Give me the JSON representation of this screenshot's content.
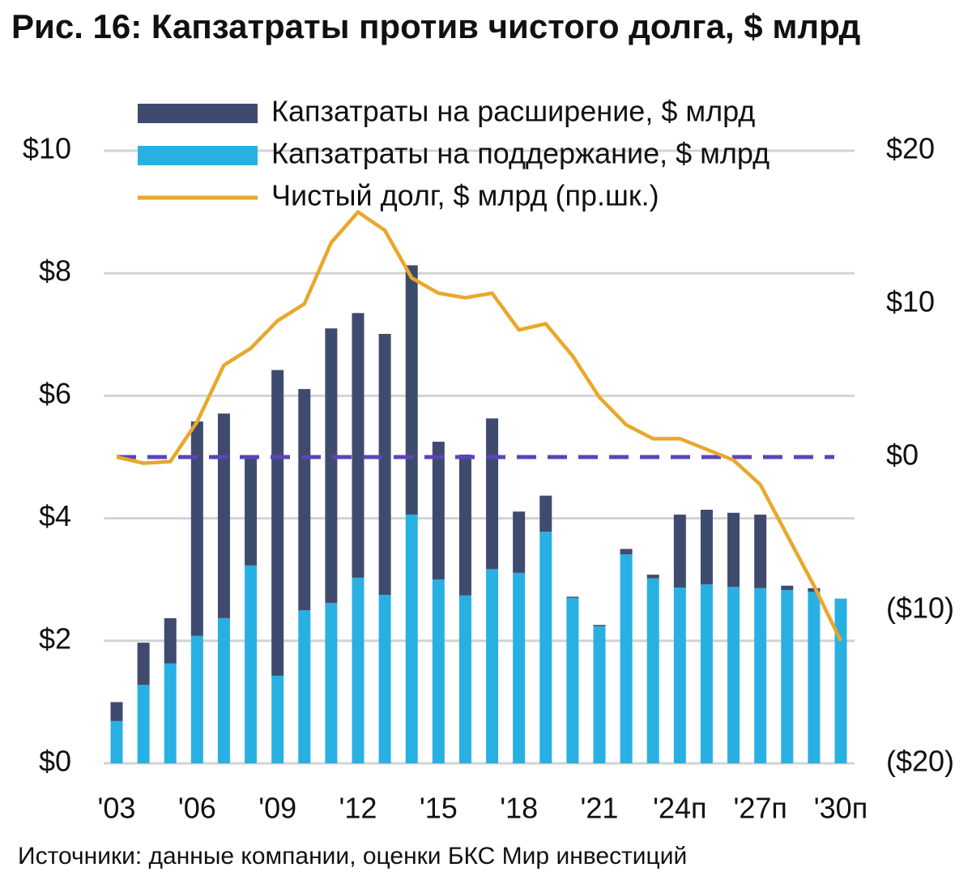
{
  "chart_data": {
    "type": "bar_line",
    "title": "Рис. 16: Капзатраты против чистого долга, $ млрд",
    "source": "Источники: данные компании, оценки БКС Мир инвестиций",
    "categories": [
      "'03",
      null,
      null,
      "'06",
      null,
      null,
      "'09",
      null,
      null,
      "'12",
      null,
      null,
      "'15",
      null,
      null,
      "'18",
      null,
      null,
      "'21",
      null,
      null,
      "'24п",
      null,
      null,
      "'27п",
      null,
      null,
      "'30п"
    ],
    "series": [
      {
        "name": "Капзатраты на поддержание, $ млрд",
        "color": "#29b0e3",
        "kind": "bar",
        "values": [
          0.69,
          1.28,
          1.63,
          2.08,
          2.37,
          3.23,
          1.43,
          2.5,
          2.62,
          3.03,
          2.75,
          4.06,
          3.0,
          2.74,
          3.17,
          3.11,
          3.78,
          2.7,
          2.24,
          3.41,
          3.02,
          2.87,
          2.92,
          2.88,
          2.86,
          2.83,
          2.8,
          2.69
        ]
      },
      {
        "name": "Капзатраты на расширение, $ млрд",
        "color": "#3f4b6e",
        "kind": "bar",
        "values": [
          0.31,
          0.69,
          0.74,
          3.5,
          3.34,
          1.78,
          4.99,
          3.61,
          4.48,
          4.32,
          4.26,
          4.07,
          2.25,
          2.3,
          2.46,
          1.0,
          0.59,
          0.02,
          0.02,
          0.09,
          0.06,
          1.19,
          1.22,
          1.21,
          1.2,
          0.07,
          0.06,
          0
        ]
      },
      {
        "name": "Чистый долг, $ млрд (пр.шк.)",
        "color": "#e8a82b",
        "kind": "line",
        "axis": "y2",
        "values": [
          0,
          -0.4,
          -0.3,
          2.3,
          6.0,
          7.1,
          8.9,
          10.0,
          14.0,
          16.0,
          14.8,
          11.7,
          10.7,
          10.4,
          10.7,
          8.3,
          8.7,
          6.6,
          3.9,
          2.1,
          1.2,
          1.2,
          0.5,
          -0.2,
          -1.8,
          -5.1,
          -8.4,
          -12.0
        ]
      }
    ],
    "legend_order": [
      1,
      0,
      2
    ],
    "ylim": [
      0,
      10
    ],
    "yticks": [
      {
        "value": 0,
        "label": "$0"
      },
      {
        "value": 2,
        "label": "$2"
      },
      {
        "value": 4,
        "label": "$4"
      },
      {
        "value": 6,
        "label": "$6"
      },
      {
        "value": 8,
        "label": "$8"
      },
      {
        "value": 10,
        "label": "$10"
      }
    ],
    "y2lim": [
      -20,
      20
    ],
    "y2ticks": [
      {
        "value": -20,
        "label": "($20)"
      },
      {
        "value": -10,
        "label": "($10)"
      },
      {
        "value": 0,
        "label": "$0"
      },
      {
        "value": 10,
        "label": "$10"
      },
      {
        "value": 20,
        "label": "$20"
      }
    ],
    "reference_line": {
      "axis": "y2",
      "value": 0,
      "color": "#5b45b8"
    },
    "grid": true
  }
}
